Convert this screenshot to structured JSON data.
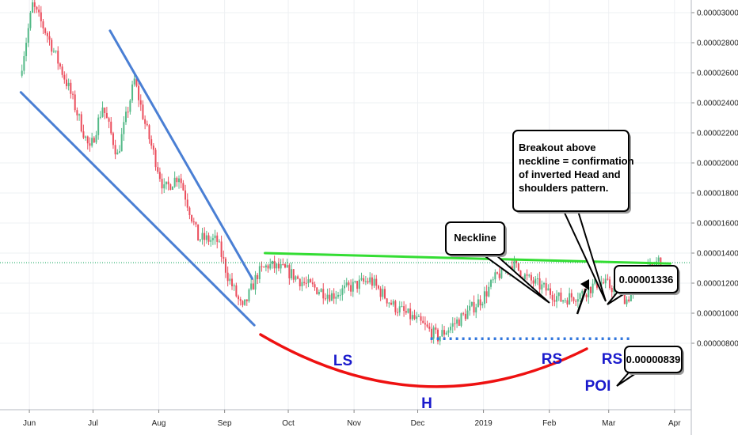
{
  "chart_data": {
    "type": "candlestick",
    "title": "",
    "xlabel": "",
    "ylabel": "",
    "ylim": [
      7.1e-06,
      3.16e-05
    ],
    "y_ticks": [
      "0.00003000",
      "0.00002800",
      "0.00002600",
      "0.00002400",
      "0.00002200",
      "0.00002000",
      "0.00001800",
      "0.00001600",
      "0.00001400",
      "0.00001200",
      "0.00001000",
      "0.00000800"
    ],
    "x_ticks": [
      "Jun",
      "Jul",
      "Aug",
      "Sep",
      "Oct",
      "Nov",
      "Dec",
      "2019",
      "Feb",
      "Mar",
      "Apr"
    ],
    "grid": true,
    "colors": {
      "up": "#53b987",
      "down": "#eb4d5c",
      "wedge": "#4a7fd4",
      "neckline": "#33dd33",
      "cup": "#ee1111",
      "labels": "#1a1acc",
      "poi": "#3377dd",
      "ref": "#00a050"
    },
    "reference_line": {
      "value": 1.336e-05
    },
    "price_path": [
      {
        "date": "2018-05-28",
        "price": 2.58e-05
      },
      {
        "date": "2018-06-03",
        "price": 3.05e-05
      },
      {
        "date": "2018-06-10",
        "price": 2.85e-05
      },
      {
        "date": "2018-06-20",
        "price": 2.5e-05
      },
      {
        "date": "2018-06-30",
        "price": 2.08e-05
      },
      {
        "date": "2018-07-06",
        "price": 2.38e-05
      },
      {
        "date": "2018-07-13",
        "price": 2.05e-05
      },
      {
        "date": "2018-07-21",
        "price": 2.55e-05
      },
      {
        "date": "2018-07-26",
        "price": 2.26e-05
      },
      {
        "date": "2018-08-04",
        "price": 1.82e-05
      },
      {
        "date": "2018-08-11",
        "price": 1.92e-05
      },
      {
        "date": "2018-08-20",
        "price": 1.5e-05
      },
      {
        "date": "2018-08-29",
        "price": 1.48e-05
      },
      {
        "date": "2018-09-03",
        "price": 1.25e-05
      },
      {
        "date": "2018-09-10",
        "price": 1.02e-05
      },
      {
        "date": "2018-09-17",
        "price": 1.26e-05
      },
      {
        "date": "2018-09-22",
        "price": 1.32e-05
      },
      {
        "date": "2018-10-01",
        "price": 1.28e-05
      },
      {
        "date": "2018-10-10",
        "price": 1.19e-05
      },
      {
        "date": "2018-10-22",
        "price": 1.12e-05
      },
      {
        "date": "2018-11-01",
        "price": 1.18e-05
      },
      {
        "date": "2018-11-09",
        "price": 1.22e-05
      },
      {
        "date": "2018-11-20",
        "price": 1.05e-05
      },
      {
        "date": "2018-12-01",
        "price": 9.5e-06
      },
      {
        "date": "2018-12-11",
        "price": 8.4e-06
      },
      {
        "date": "2018-12-23",
        "price": 9.8e-06
      },
      {
        "date": "2019-01-01",
        "price": 1.1e-05
      },
      {
        "date": "2019-01-08",
        "price": 1.25e-05
      },
      {
        "date": "2019-01-15",
        "price": 1.33e-05
      },
      {
        "date": "2019-01-22",
        "price": 1.23e-05
      },
      {
        "date": "2019-02-02",
        "price": 1.14e-05
      },
      {
        "date": "2019-02-07",
        "price": 1.09e-05
      },
      {
        "date": "2019-02-17",
        "price": 1.13e-05
      },
      {
        "date": "2019-02-25",
        "price": 1.21e-05
      },
      {
        "date": "2019-03-05",
        "price": 1.16e-05
      },
      {
        "date": "2019-03-10",
        "price": 1.09e-05
      },
      {
        "date": "2019-03-18",
        "price": 1.25e-05
      },
      {
        "date": "2019-03-25",
        "price": 1.35e-05
      }
    ],
    "annotations": {
      "breakout_text": [
        "Breakout above",
        "neckline = confirmation",
        "of inverted Head and",
        "shoulders pattern."
      ],
      "neckline_label": "Neckline",
      "price_high": "0.00001336",
      "price_low": "0.00000839",
      "ls": "LS",
      "head": "H",
      "rs1": "RS",
      "rs2": "RS",
      "poi": "POI"
    },
    "trendlines": [
      {
        "name": "wedge-lower",
        "from": {
          "date": "2018-05-28",
          "price": 2.47e-05
        },
        "to": {
          "date": "2018-09-15",
          "price": 9.2e-06
        }
      },
      {
        "name": "wedge-upper",
        "from": {
          "date": "2018-07-09",
          "price": 2.88e-05
        },
        "to": {
          "date": "2018-09-14",
          "price": 1.23e-05
        }
      },
      {
        "name": "neckline",
        "from": {
          "date": "2018-09-20",
          "price": 1.4e-05
        },
        "to": {
          "date": "2019-03-30",
          "price": 1.33e-05
        }
      },
      {
        "name": "poi-line",
        "from": {
          "date": "2018-12-07",
          "price": 8.3e-06
        },
        "to": {
          "date": "2019-03-11",
          "price": 8.3e-06
        }
      }
    ]
  }
}
